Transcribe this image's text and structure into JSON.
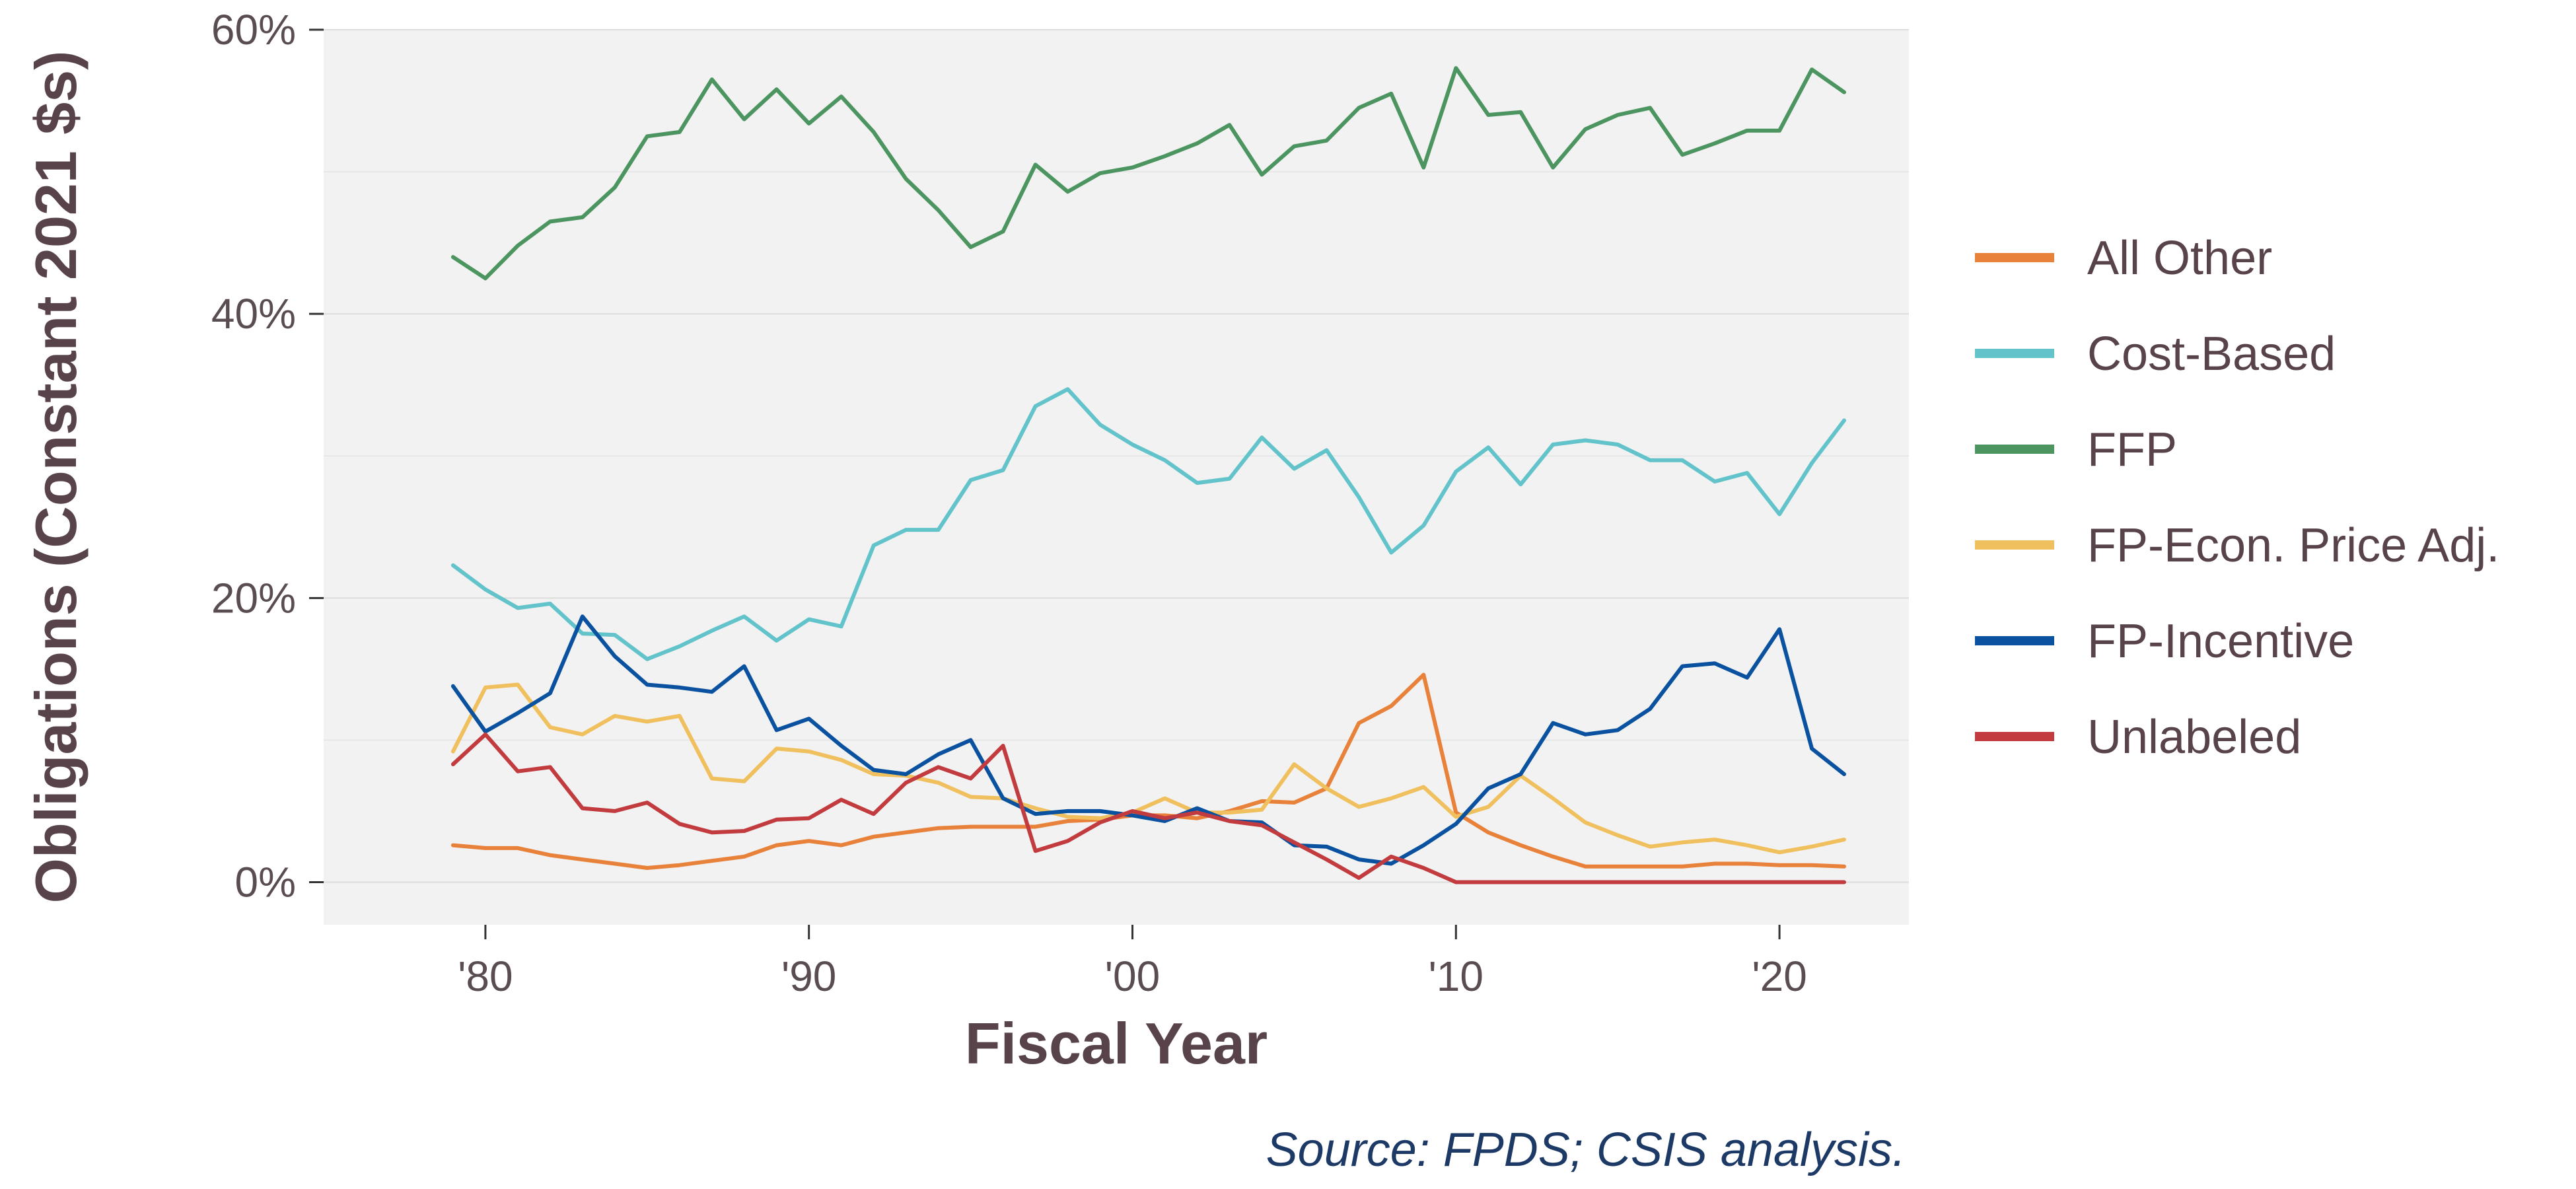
{
  "chart_data": {
    "type": "line",
    "xlabel": "Fiscal Year",
    "ylabel": "Obligations (Constant 2021 $s)",
    "source": "Source: FPDS; CSIS analysis.",
    "xlim": [
      1975,
      2024
    ],
    "ylim": [
      -3,
      60
    ],
    "x_ticks": [
      {
        "value": 1980,
        "label": "'80"
      },
      {
        "value": 1990,
        "label": "'90"
      },
      {
        "value": 2000,
        "label": "'00"
      },
      {
        "value": 2010,
        "label": "'10"
      },
      {
        "value": 2020,
        "label": "'20"
      }
    ],
    "y_ticks": [
      {
        "value": 0,
        "label": "0%"
      },
      {
        "value": 20,
        "label": "20%"
      },
      {
        "value": 40,
        "label": "40%"
      },
      {
        "value": 60,
        "label": "60%"
      }
    ],
    "grid": true,
    "legend_position": "right",
    "x": [
      1979,
      1980,
      1981,
      1982,
      1983,
      1984,
      1985,
      1986,
      1987,
      1988,
      1989,
      1990,
      1991,
      1992,
      1993,
      1994,
      1995,
      1996,
      1997,
      1998,
      1999,
      2000,
      2001,
      2002,
      2003,
      2004,
      2005,
      2006,
      2007,
      2008,
      2009,
      2010,
      2011,
      2012,
      2013,
      2014,
      2015,
      2016,
      2017,
      2018,
      2019,
      2020,
      2021,
      2022
    ],
    "series": [
      {
        "name": "All Other",
        "color": "#e8823b",
        "values": [
          2.6,
          2.4,
          2.4,
          1.9,
          1.6,
          1.3,
          1.0,
          1.2,
          1.5,
          1.8,
          2.6,
          2.9,
          2.6,
          3.2,
          3.5,
          3.8,
          3.9,
          3.9,
          3.9,
          4.3,
          4.4,
          4.7,
          4.7,
          4.5,
          5.0,
          5.7,
          5.6,
          6.6,
          11.2,
          12.4,
          14.6,
          4.9,
          3.5,
          2.6,
          1.8,
          1.1,
          1.1,
          1.1,
          1.1,
          1.3,
          1.3,
          1.2,
          1.2,
          1.1
        ]
      },
      {
        "name": "Cost-Based",
        "color": "#63c3ca",
        "values": [
          22.3,
          20.6,
          19.3,
          19.6,
          17.5,
          17.4,
          15.7,
          16.6,
          17.7,
          18.7,
          17.0,
          18.5,
          18.0,
          23.7,
          24.8,
          24.8,
          28.3,
          29.0,
          33.5,
          34.7,
          32.2,
          30.8,
          29.7,
          28.1,
          28.4,
          31.3,
          29.1,
          30.4,
          27.1,
          23.2,
          25.1,
          28.9,
          30.6,
          28.0,
          30.8,
          31.1,
          30.8,
          29.7,
          29.7,
          28.2,
          28.8,
          25.9,
          29.5,
          32.5
        ]
      },
      {
        "name": "FFP",
        "color": "#4c9560",
        "values": [
          44.0,
          42.5,
          44.8,
          46.5,
          46.8,
          48.9,
          52.5,
          52.8,
          56.5,
          53.7,
          55.8,
          53.4,
          55.3,
          52.8,
          49.5,
          47.3,
          44.7,
          45.8,
          50.5,
          48.6,
          49.9,
          50.3,
          51.1,
          52.0,
          53.3,
          49.8,
          51.8,
          52.2,
          54.5,
          55.5,
          50.3,
          57.3,
          54.0,
          54.2,
          50.3,
          53.0,
          54.0,
          54.5,
          51.2,
          52.0,
          52.9,
          52.9,
          57.2,
          55.6
        ]
      },
      {
        "name": "FP-Econ. Price Adj.",
        "color": "#f0c05e",
        "values": [
          9.2,
          13.7,
          13.9,
          10.9,
          10.4,
          11.7,
          11.3,
          11.7,
          7.3,
          7.1,
          9.4,
          9.2,
          8.6,
          7.6,
          7.5,
          7.0,
          6.0,
          5.9,
          5.2,
          4.6,
          4.5,
          4.9,
          5.9,
          4.9,
          4.9,
          5.1,
          8.3,
          6.6,
          5.3,
          5.9,
          6.7,
          4.6,
          5.3,
          7.5,
          5.9,
          4.2,
          3.3,
          2.5,
          2.8,
          3.0,
          2.6,
          2.1,
          2.5,
          3.0
        ]
      },
      {
        "name": "FP-Incentive",
        "color": "#0a52a0",
        "values": [
          13.8,
          10.6,
          11.9,
          13.3,
          18.7,
          15.9,
          13.9,
          13.7,
          13.4,
          15.2,
          10.7,
          11.5,
          9.6,
          7.9,
          7.6,
          9.0,
          10.0,
          5.9,
          4.8,
          5.0,
          5.0,
          4.7,
          4.3,
          5.2,
          4.3,
          4.2,
          2.6,
          2.5,
          1.6,
          1.3,
          2.6,
          4.1,
          6.6,
          7.6,
          11.2,
          10.4,
          10.7,
          12.2,
          15.2,
          15.4,
          14.4,
          17.8,
          9.4,
          7.6
        ]
      },
      {
        "name": "Unlabeled",
        "color": "#c23b3f",
        "values": [
          8.3,
          10.4,
          7.8,
          8.1,
          5.2,
          5.0,
          5.6,
          4.1,
          3.5,
          3.6,
          4.4,
          4.5,
          5.8,
          4.8,
          7.0,
          8.1,
          7.3,
          9.6,
          2.2,
          2.9,
          4.2,
          5.0,
          4.5,
          4.9,
          4.3,
          4.0,
          2.8,
          1.6,
          0.3,
          1.8,
          1.0,
          0.0,
          0.0,
          0.0,
          0.0,
          0.0,
          0.0,
          0.0,
          0.0,
          0.0,
          0.0,
          0.0,
          0.0,
          0.0
        ]
      }
    ]
  }
}
